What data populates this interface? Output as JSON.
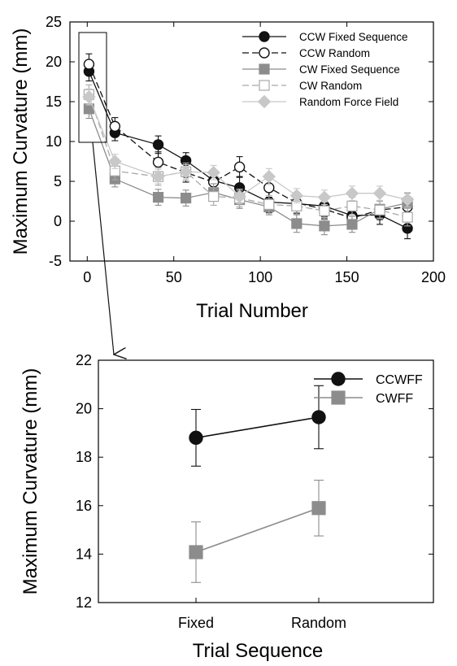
{
  "chart_data": [
    {
      "type": "line",
      "xlabel": "Trial Number",
      "ylabel": "Maximum Curvature (mm)",
      "xlim": [
        -10,
        200
      ],
      "ylim": [
        -5,
        25
      ],
      "xticks": [
        "0",
        "50",
        "100",
        "150",
        "200"
      ],
      "yticks": [
        "-5",
        "0",
        "5",
        "10",
        "15",
        "20",
        "25"
      ],
      "legend_position": "top-right",
      "inset_box": {
        "x_range": [
          -5,
          5
        ],
        "y_range": [
          9.5,
          23.5
        ]
      },
      "series": [
        {
          "name": "CCW Fixed Sequence",
          "color": "#111111",
          "marker": "circle",
          "filled": true,
          "dash": "solid",
          "x": [
            1,
            16,
            41,
            57,
            73,
            88,
            105,
            121,
            137,
            153,
            169,
            185
          ],
          "y": [
            18.8,
            11.1,
            9.6,
            7.6,
            5.1,
            4.2,
            2.4,
            2.2,
            1.9,
            0.7,
            0.8,
            -0.9
          ],
          "err": [
            1.2,
            1.0,
            1.1,
            1.0,
            1.2,
            1.4,
            1.3,
            1.2,
            1.3,
            1.1,
            1.2,
            1.3
          ]
        },
        {
          "name": "CCW Random",
          "color": "#111111",
          "marker": "circle",
          "filled": false,
          "dash": "dash",
          "x": [
            1,
            16,
            41,
            57,
            73,
            88,
            105,
            121,
            137,
            153,
            169,
            185
          ],
          "y": [
            19.7,
            11.9,
            7.4,
            6.1,
            4.9,
            6.8,
            4.2,
            2.3,
            1.5,
            0.4,
            1.4,
            1.8
          ],
          "err": [
            1.3,
            1.1,
            1.3,
            1.2,
            1.2,
            1.3,
            1.2,
            1.3,
            1.2,
            1.1,
            1.2,
            1.3
          ]
        },
        {
          "name": "CW Fixed Sequence",
          "color": "#8c8c8c",
          "marker": "square",
          "filled": true,
          "dash": "solid",
          "x": [
            1,
            16,
            41,
            57,
            73,
            88,
            105,
            121,
            137,
            153,
            169,
            185
          ],
          "y": [
            14.1,
            5.3,
            3.0,
            2.9,
            3.6,
            2.7,
            1.8,
            -0.3,
            -0.6,
            -0.4,
            1.5,
            2.3
          ],
          "err": [
            1.2,
            1.0,
            1.0,
            1.0,
            1.1,
            1.1,
            1.0,
            1.1,
            1.1,
            1.0,
            1.1,
            1.2
          ]
        },
        {
          "name": "CW Random",
          "color": "#a8a8a8",
          "marker": "square",
          "filled": false,
          "dash": "dash",
          "x": [
            1,
            16,
            41,
            57,
            73,
            88,
            105,
            121,
            137,
            153,
            169,
            185
          ],
          "y": [
            15.9,
            6.3,
            5.6,
            6.2,
            3.1,
            2.9,
            2.1,
            1.9,
            1.3,
            1.9,
            1.4,
            0.5
          ],
          "err": [
            1.2,
            1.1,
            1.1,
            1.1,
            1.1,
            1.1,
            1.1,
            1.0,
            1.1,
            1.1,
            1.1,
            1.1
          ]
        },
        {
          "name": "Random Force Field",
          "color": "#c8c8c8",
          "marker": "diamond",
          "filled": true,
          "dash": "solid",
          "x": [
            1,
            16,
            41,
            57,
            73,
            88,
            105,
            121,
            137,
            153,
            169,
            185
          ],
          "y": [
            15.6,
            7.5,
            5.6,
            6.2,
            6.1,
            3.1,
            5.6,
            3.2,
            3.0,
            3.5,
            3.5,
            2.7
          ],
          "err": [
            1.0,
            0.9,
            0.9,
            0.9,
            0.9,
            0.9,
            1.0,
            0.9,
            0.9,
            0.9,
            0.9,
            0.9
          ]
        }
      ]
    },
    {
      "type": "line",
      "xlabel": "Trial Sequence",
      "ylabel": "Maximum Curvature (mm)",
      "categories": [
        "Fixed",
        "Random"
      ],
      "ylim": [
        12,
        22
      ],
      "yticks": [
        "12",
        "14",
        "16",
        "18",
        "20",
        "22"
      ],
      "legend_position": "top-right",
      "series": [
        {
          "name": "CCWFF",
          "color": "#111111",
          "marker": "circle",
          "values": [
            18.8,
            19.65
          ],
          "err": [
            1.17,
            1.3
          ]
        },
        {
          "name": "CWFF",
          "color": "#8c8c8c",
          "marker": "square",
          "values": [
            14.08,
            15.9
          ],
          "err": [
            1.25,
            1.15
          ]
        }
      ]
    }
  ]
}
